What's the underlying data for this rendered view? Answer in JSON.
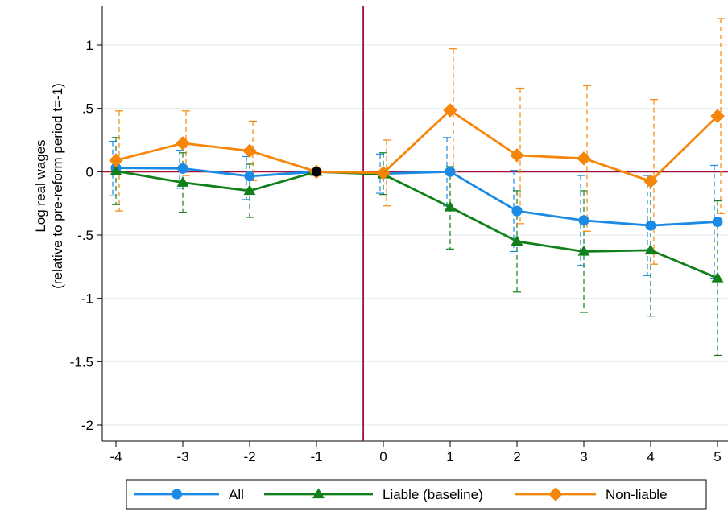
{
  "chart_data": {
    "type": "line",
    "title": "",
    "xlabel": "",
    "ylabel_lines": [
      "Log real wages",
      "(relative to pre-reform period t=-1)"
    ],
    "x": [
      -4,
      -3,
      -2,
      -1,
      0,
      1,
      2,
      3,
      4,
      5
    ],
    "xlim": [
      -4,
      5
    ],
    "ylim": [
      -2,
      1.3
    ],
    "x_ticks": [
      "-4",
      "-3",
      "-2",
      "-1",
      "0",
      "1",
      "2",
      "3",
      "4",
      "5"
    ],
    "y_ticks": [
      {
        "value": 1,
        "label": "1"
      },
      {
        "value": 0.5,
        "label": ".5"
      },
      {
        "value": 0,
        "label": "0"
      },
      {
        "value": -0.5,
        "label": "-.5"
      },
      {
        "value": -1,
        "label": "-1"
      },
      {
        "value": -1.5,
        "label": "-1.5"
      },
      {
        "value": -2,
        "label": "-2"
      }
    ],
    "grid": "horizontal",
    "reform_line_x": -0.3,
    "reference_line_y": 0,
    "reference_point": {
      "x": -1,
      "y": 0
    },
    "legend_position": "bottom",
    "series": [
      {
        "name": "All",
        "color": "#1a8ae5",
        "marker": "circle",
        "values": [
          0.03,
          0.025,
          -0.035,
          0,
          -0.015,
          0,
          -0.31,
          -0.385,
          -0.425,
          -0.395
        ],
        "ci_low": [
          -0.19,
          -0.13,
          -0.22,
          0,
          -0.17,
          -0.27,
          -0.63,
          -0.74,
          -0.82,
          -0.84
        ],
        "ci_high": [
          0.24,
          0.17,
          0.12,
          0,
          0.14,
          0.27,
          0.01,
          -0.03,
          -0.03,
          0.05
        ]
      },
      {
        "name": "Liable (baseline)",
        "color": "#12801a",
        "marker": "triangle",
        "values": [
          0.005,
          -0.085,
          -0.15,
          0,
          -0.02,
          -0.28,
          -0.55,
          -0.63,
          -0.62,
          -0.84
        ],
        "ci_low": [
          -0.26,
          -0.32,
          -0.36,
          0,
          -0.18,
          -0.61,
          -0.95,
          -1.11,
          -1.14,
          -1.45
        ],
        "ci_high": [
          0.27,
          0.15,
          0.06,
          0,
          0.15,
          0.04,
          -0.15,
          -0.15,
          -0.1,
          -0.23
        ]
      },
      {
        "name": "Non-liable",
        "color": "#f5860a",
        "marker": "diamond",
        "values": [
          0.09,
          0.225,
          0.165,
          0,
          -0.01,
          0.485,
          0.13,
          0.105,
          -0.075,
          0.44
        ],
        "ci_low": [
          -0.31,
          -0.03,
          -0.07,
          0,
          -0.27,
          0,
          -0.41,
          -0.47,
          -0.73,
          -0.33
        ],
        "ci_high": [
          0.48,
          0.48,
          0.4,
          0,
          0.25,
          0.97,
          0.66,
          0.68,
          0.57,
          1.21
        ]
      }
    ]
  }
}
